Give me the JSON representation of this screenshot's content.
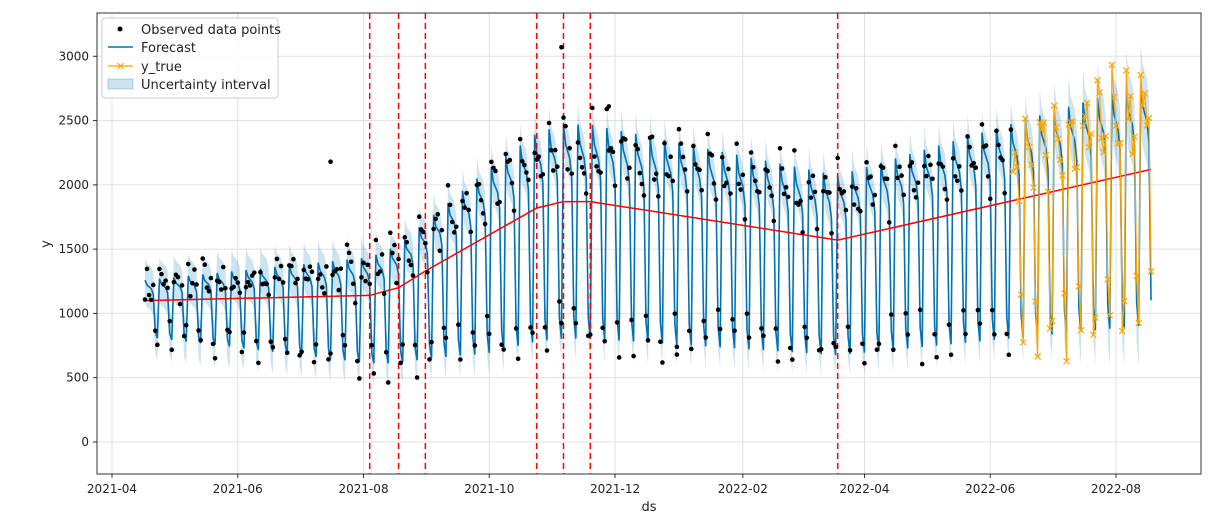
{
  "chart_data": {
    "type": "line",
    "title": "",
    "xlabel": "ds",
    "ylabel": "y",
    "xlim": [
      "2021-03-24",
      "2022-09-14"
    ],
    "ylim": [
      -260,
      3330
    ],
    "x_ticks": [
      "2021-04",
      "2021-06",
      "2021-08",
      "2021-10",
      "2021-12",
      "2022-02",
      "2022-04",
      "2022-06",
      "2022-08"
    ],
    "y_ticks": [
      0,
      500,
      1000,
      1500,
      2000,
      2500,
      3000
    ],
    "grid": true,
    "legend": {
      "placement": "top-left",
      "entries": [
        "Observed data points",
        "Forecast",
        "y_true",
        "Uncertainty interval"
      ]
    },
    "history_range": [
      "2021-04-17",
      "2022-06-11"
    ],
    "future_range": [
      "2022-06-12",
      "2022-08-18"
    ],
    "trend": [
      [
        "2021-04-17",
        1100
      ],
      [
        "2021-08-04",
        1140
      ],
      [
        "2021-08-18",
        1200
      ],
      [
        "2021-08-31",
        1330
      ],
      [
        "2021-10-24",
        1820
      ],
      [
        "2021-11-06",
        1870
      ],
      [
        "2021-11-19",
        1870
      ],
      [
        "2022-03-19",
        1570
      ],
      [
        "2022-08-18",
        2120
      ]
    ],
    "changepoints": [
      "2021-08-04",
      "2021-08-18",
      "2021-08-31",
      "2021-10-24",
      "2021-11-06",
      "2021-11-19",
      "2022-03-19"
    ],
    "weekly_multipliers": [
      1.32,
      1.24,
      1.21,
      1.18,
      1.1,
      0.52,
      0.43
    ],
    "uncertainty_halfwidth": [
      170,
      330
    ],
    "observed_outliers": [
      [
        "2021-07-16",
        2180
      ],
      [
        "2021-11-05",
        3070
      ],
      [
        "2021-11-28",
        2610
      ],
      [
        "2021-12-31",
        680
      ]
    ],
    "colors": {
      "observed": "#000000",
      "forecast": "#0072B2",
      "y_true": "#FFA500",
      "interval": "#0072B2",
      "trend": "#FF0000",
      "changepoint": "#FF0000"
    }
  }
}
